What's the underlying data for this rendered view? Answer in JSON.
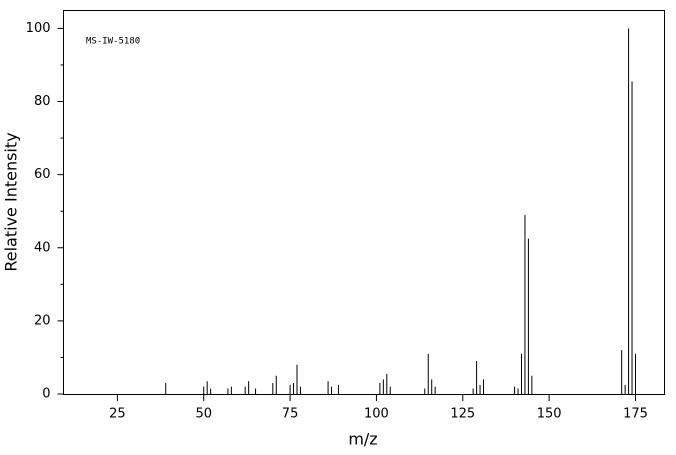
{
  "chart_data": {
    "type": "stem",
    "annotation": "MS-IW-5180",
    "xlabel": "m/z",
    "ylabel": "Relative Intensity",
    "x": [
      39,
      50,
      51,
      52,
      57,
      58,
      62,
      63,
      65,
      70,
      71,
      75,
      76,
      77,
      78,
      86,
      87,
      89,
      101,
      102,
      103,
      104,
      114,
      115,
      116,
      117,
      128,
      129,
      130,
      131,
      140,
      141,
      142,
      143,
      144,
      145,
      171,
      172,
      173,
      174,
      175
    ],
    "values": [
      3,
      2,
      3.5,
      1.5,
      1.5,
      2,
      2,
      3.5,
      1.5,
      3,
      5,
      2.5,
      3,
      8,
      2,
      3.5,
      2,
      2.5,
      3,
      4,
      5.5,
      2,
      1.5,
      11,
      4,
      2,
      1.5,
      9,
      2.5,
      4,
      2,
      1.5,
      11,
      49,
      42.5,
      5,
      12,
      2.5,
      100,
      85.5,
      11
    ],
    "color": "#000000",
    "xlim": [
      9.4,
      183.4
    ],
    "xticks": [
      25,
      50,
      75,
      100,
      125,
      150,
      175
    ],
    "ylim": [
      0,
      104.9
    ],
    "yticks": [
      0,
      20,
      40,
      60,
      80,
      100
    ],
    "yminorticks": [
      10,
      30,
      50,
      70,
      90
    ]
  }
}
